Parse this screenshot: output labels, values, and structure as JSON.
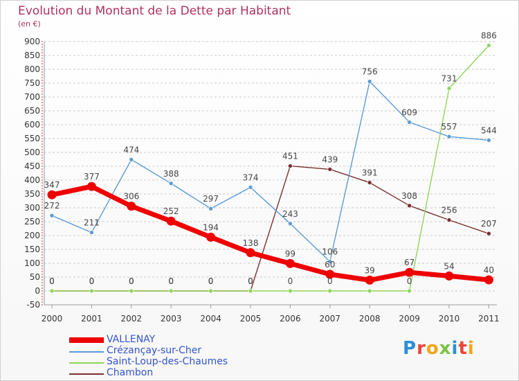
{
  "colors": {
    "title": "#b03060",
    "axis_text": "#333333",
    "grid": "#c8c8c8",
    "legend_text": "#3355cc"
  },
  "logo": {
    "text": "Proxiti",
    "letters": [
      {
        "ch": "P",
        "color": "#2a8fd6"
      },
      {
        "ch": "r",
        "color": "#e8453c"
      },
      {
        "ch": "o",
        "color": "#f2a516"
      },
      {
        "ch": "x",
        "color": "#7cc242"
      },
      {
        "ch": "i",
        "color": "#2a8fd6"
      },
      {
        "ch": "t",
        "color": "#e8453c"
      },
      {
        "ch": "i",
        "color": "#f2a516"
      }
    ]
  },
  "chart_data": {
    "type": "line",
    "title": "Evolution du Montant de la Dette par Habitant",
    "subtitle": "(en €)",
    "xlabel": "",
    "ylabel": "",
    "ylim": [
      -50,
      900
    ],
    "ytick_step": 50,
    "yticks": [
      "-50",
      "0",
      "50",
      "100",
      "150",
      "200",
      "250",
      "300",
      "350",
      "400",
      "450",
      "500",
      "550",
      "600",
      "650",
      "700",
      "750",
      "800",
      "850",
      "900"
    ],
    "categories": [
      "2000",
      "2001",
      "2002",
      "2003",
      "2004",
      "2005",
      "2006",
      "2007",
      "2008",
      "2009",
      "2010",
      "2011"
    ],
    "grid": true,
    "legend_position": "bottom-left",
    "series": [
      {
        "name": "VALLENAY",
        "color": "#ee0000",
        "style": "thick",
        "values": [
          347,
          377,
          306,
          252,
          194,
          138,
          99,
          60,
          39,
          67,
          54,
          40
        ],
        "labels": [
          "347",
          "377",
          "306",
          "252",
          "194",
          "138",
          "99",
          "60",
          "39",
          "67",
          "54",
          "40"
        ]
      },
      {
        "name": "Crézançay-sur-Cher",
        "color": "#5b9bd5",
        "style": "thin",
        "values": [
          272,
          211,
          474,
          388,
          297,
          374,
          243,
          106,
          756,
          609,
          557,
          544
        ],
        "labels": [
          "272",
          "211",
          "474",
          "388",
          "297",
          "374",
          "243",
          "106",
          "756",
          "609",
          "557",
          "544"
        ]
      },
      {
        "name": "Saint-Loup-des-Chaumes",
        "color": "#8fd65b",
        "style": "thin",
        "values": [
          0,
          0,
          0,
          0,
          0,
          0,
          0,
          0,
          0,
          0,
          731,
          886
        ],
        "labels": [
          "0",
          "0",
          "0",
          "0",
          "0",
          "0",
          "0",
          "0",
          "",
          "0",
          "731",
          "886"
        ]
      },
      {
        "name": "Chambon",
        "color": "#7a3030",
        "style": "thin",
        "values": [
          0,
          0,
          0,
          0,
          0,
          0,
          451,
          439,
          391,
          308,
          256,
          207
        ],
        "labels": [
          "0",
          "0",
          "0",
          "0",
          "0",
          "0",
          "451",
          "439",
          "391",
          "308",
          "256",
          "207"
        ]
      }
    ]
  }
}
